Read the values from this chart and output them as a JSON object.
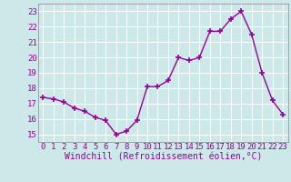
{
  "x": [
    0,
    1,
    2,
    3,
    4,
    5,
    6,
    7,
    8,
    9,
    10,
    11,
    12,
    13,
    14,
    15,
    16,
    17,
    18,
    19,
    20,
    21,
    22,
    23
  ],
  "y": [
    17.4,
    17.3,
    17.1,
    16.7,
    16.5,
    16.1,
    15.9,
    15.0,
    15.2,
    15.9,
    18.1,
    18.1,
    18.5,
    20.0,
    19.8,
    20.0,
    21.7,
    21.7,
    22.5,
    23.0,
    21.5,
    19.0,
    17.2,
    16.3
  ],
  "line_color": "#990099",
  "marker": "+",
  "marker_size": 4,
  "marker_linewidth": 1.2,
  "line_width": 1.0,
  "xlabel": "Windchill (Refroidissement éolien,°C)",
  "xlabel_fontsize": 7,
  "xlabel_color": "#990099",
  "xlabel_fontfamily": "monospace",
  "ylim": [
    14.5,
    23.5
  ],
  "xlim": [
    -0.5,
    23.5
  ],
  "yticks": [
    15,
    16,
    17,
    18,
    19,
    20,
    21,
    22,
    23
  ],
  "xticks": [
    0,
    1,
    2,
    3,
    4,
    5,
    6,
    7,
    8,
    9,
    10,
    11,
    12,
    13,
    14,
    15,
    16,
    17,
    18,
    19,
    20,
    21,
    22,
    23
  ],
  "tick_fontsize": 6.5,
  "tick_color": "#990099",
  "background_color": "#cce8e8",
  "grid_color": "#ffffff",
  "grid_linewidth": 0.7,
  "spine_color": "#888888"
}
